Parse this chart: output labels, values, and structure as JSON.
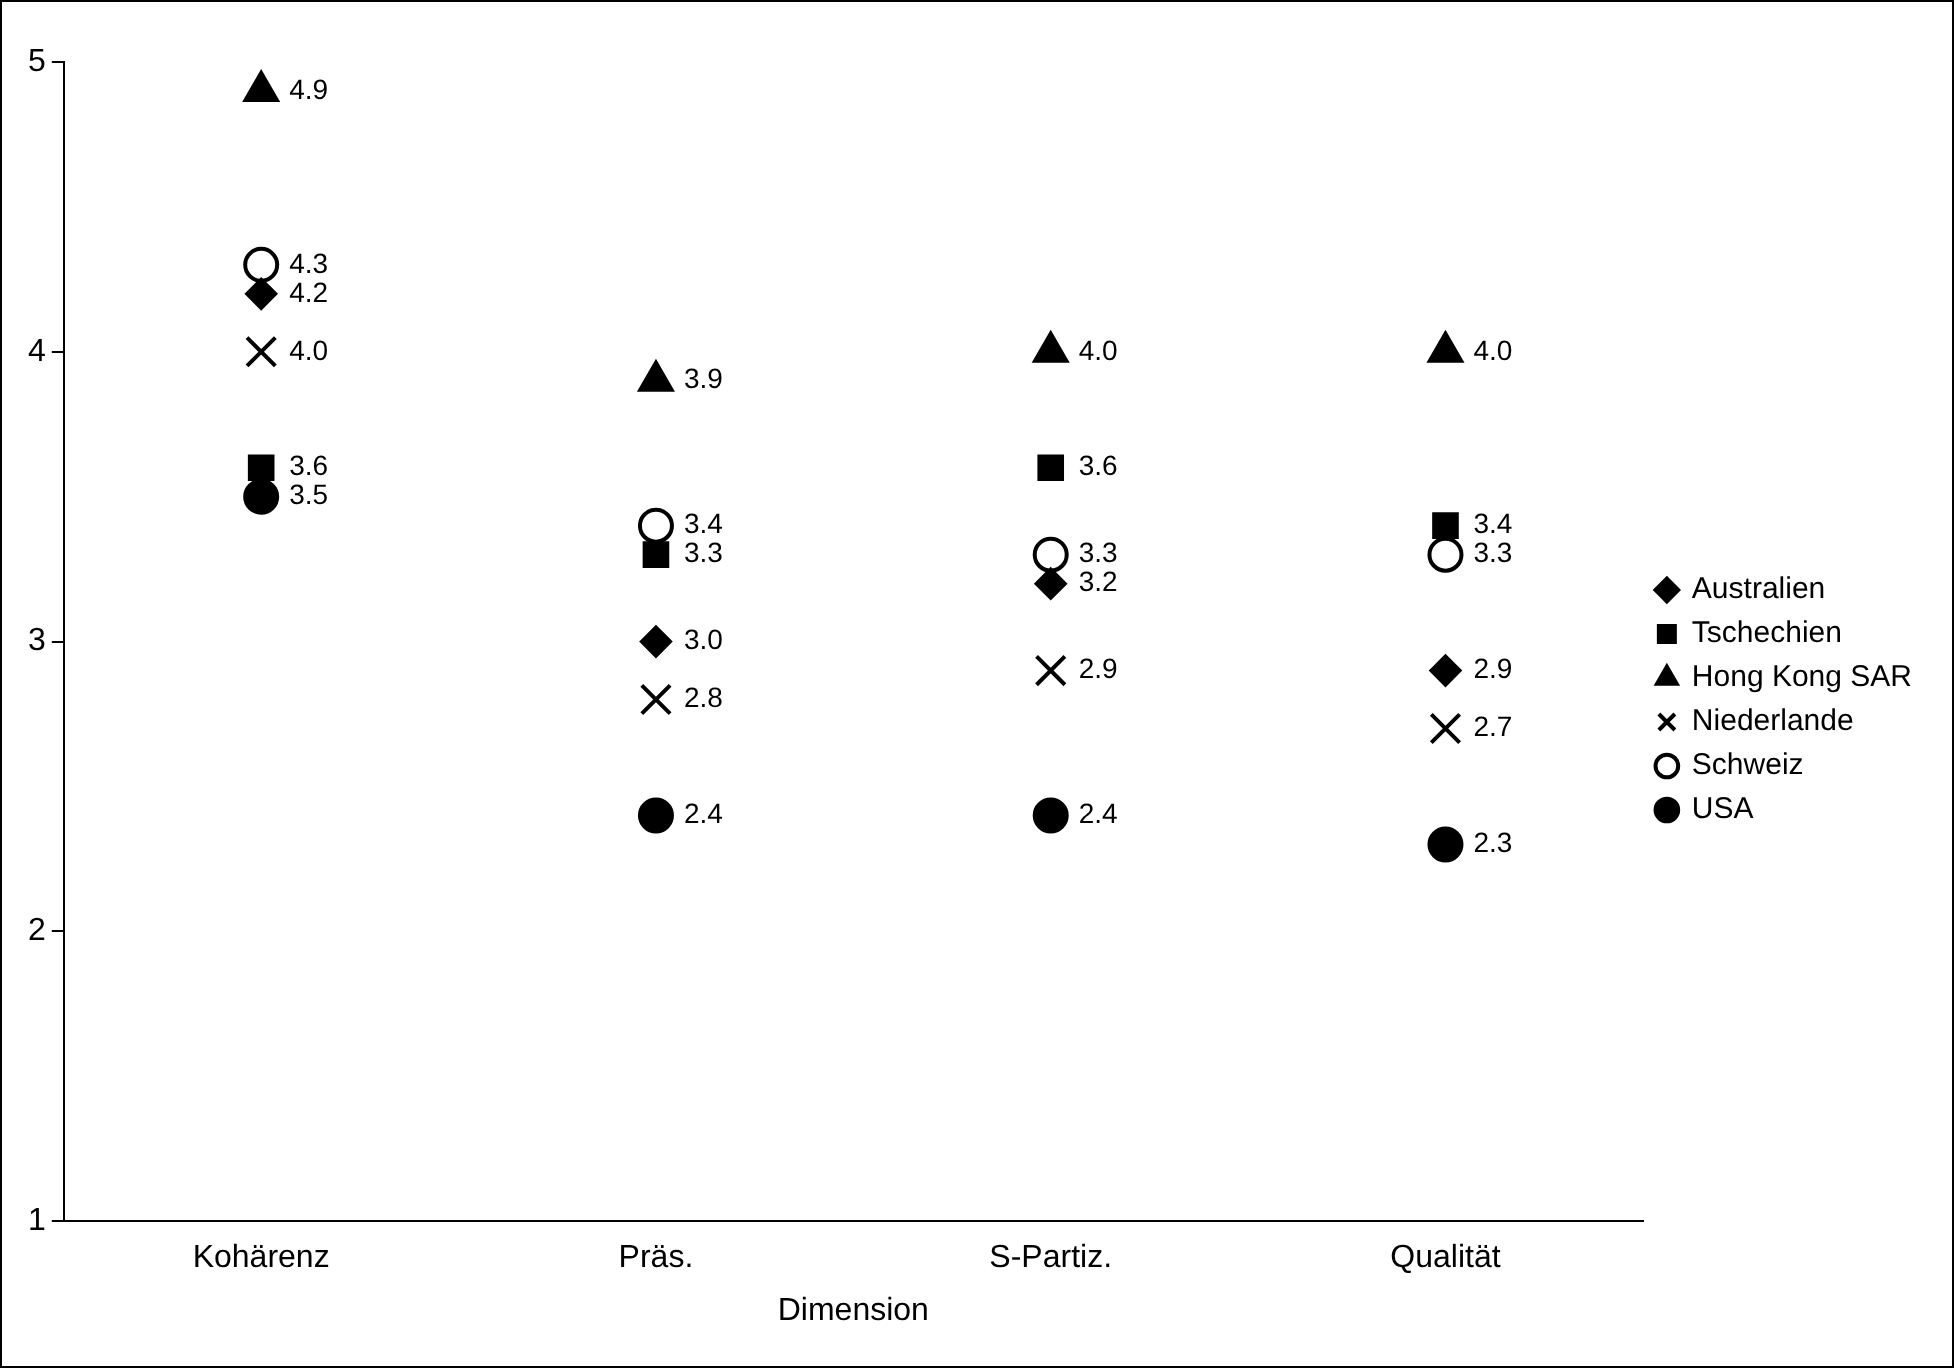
{
  "chart_data": {
    "type": "scatter",
    "xlabel": "Dimension",
    "categories": [
      "Kohärenz",
      "Präs.",
      "S-Partiz.",
      "Qualität"
    ],
    "ylim": [
      1,
      5
    ],
    "yticks": [
      1,
      2,
      3,
      4,
      5
    ],
    "grid": false,
    "legend": "right",
    "series": [
      {
        "name": "Australien",
        "color": "#000000",
        "marker": "diamond",
        "values": [
          4.2,
          3.0,
          3.2,
          2.9
        ],
        "value_labels": [
          "4.2",
          "3.0",
          "3.2",
          "2.9"
        ]
      },
      {
        "name": "Tschechien",
        "color": "#000000",
        "marker": "square",
        "values": [
          3.6,
          3.3,
          3.6,
          3.4
        ],
        "value_labels": [
          "3.6",
          "3.3",
          "3.6",
          "3.4"
        ]
      },
      {
        "name": "Hong Kong SAR",
        "color": "#000000",
        "marker": "triangle",
        "values": [
          4.9,
          3.9,
          4.0,
          4.0
        ],
        "value_labels": [
          "4.9",
          "3.9",
          "4.0",
          "4.0"
        ]
      },
      {
        "name": "Niederlande",
        "color": "#000000",
        "marker": "cross",
        "values": [
          4.0,
          2.8,
          2.9,
          2.7
        ],
        "value_labels": [
          "4.0",
          "2.8",
          "2.9",
          "2.7"
        ]
      },
      {
        "name": "Schweiz",
        "color": "#000000",
        "marker": "circle-open",
        "values": [
          4.3,
          3.4,
          3.3,
          3.3
        ],
        "value_labels": [
          "4.3",
          "3.4",
          "3.3",
          "3.3"
        ]
      },
      {
        "name": "USA",
        "color": "#000000",
        "marker": "circle",
        "values": [
          3.5,
          2.4,
          2.4,
          2.3
        ],
        "value_labels": [
          "3.5",
          "2.4",
          "2.4",
          "2.3"
        ]
      }
    ]
  }
}
